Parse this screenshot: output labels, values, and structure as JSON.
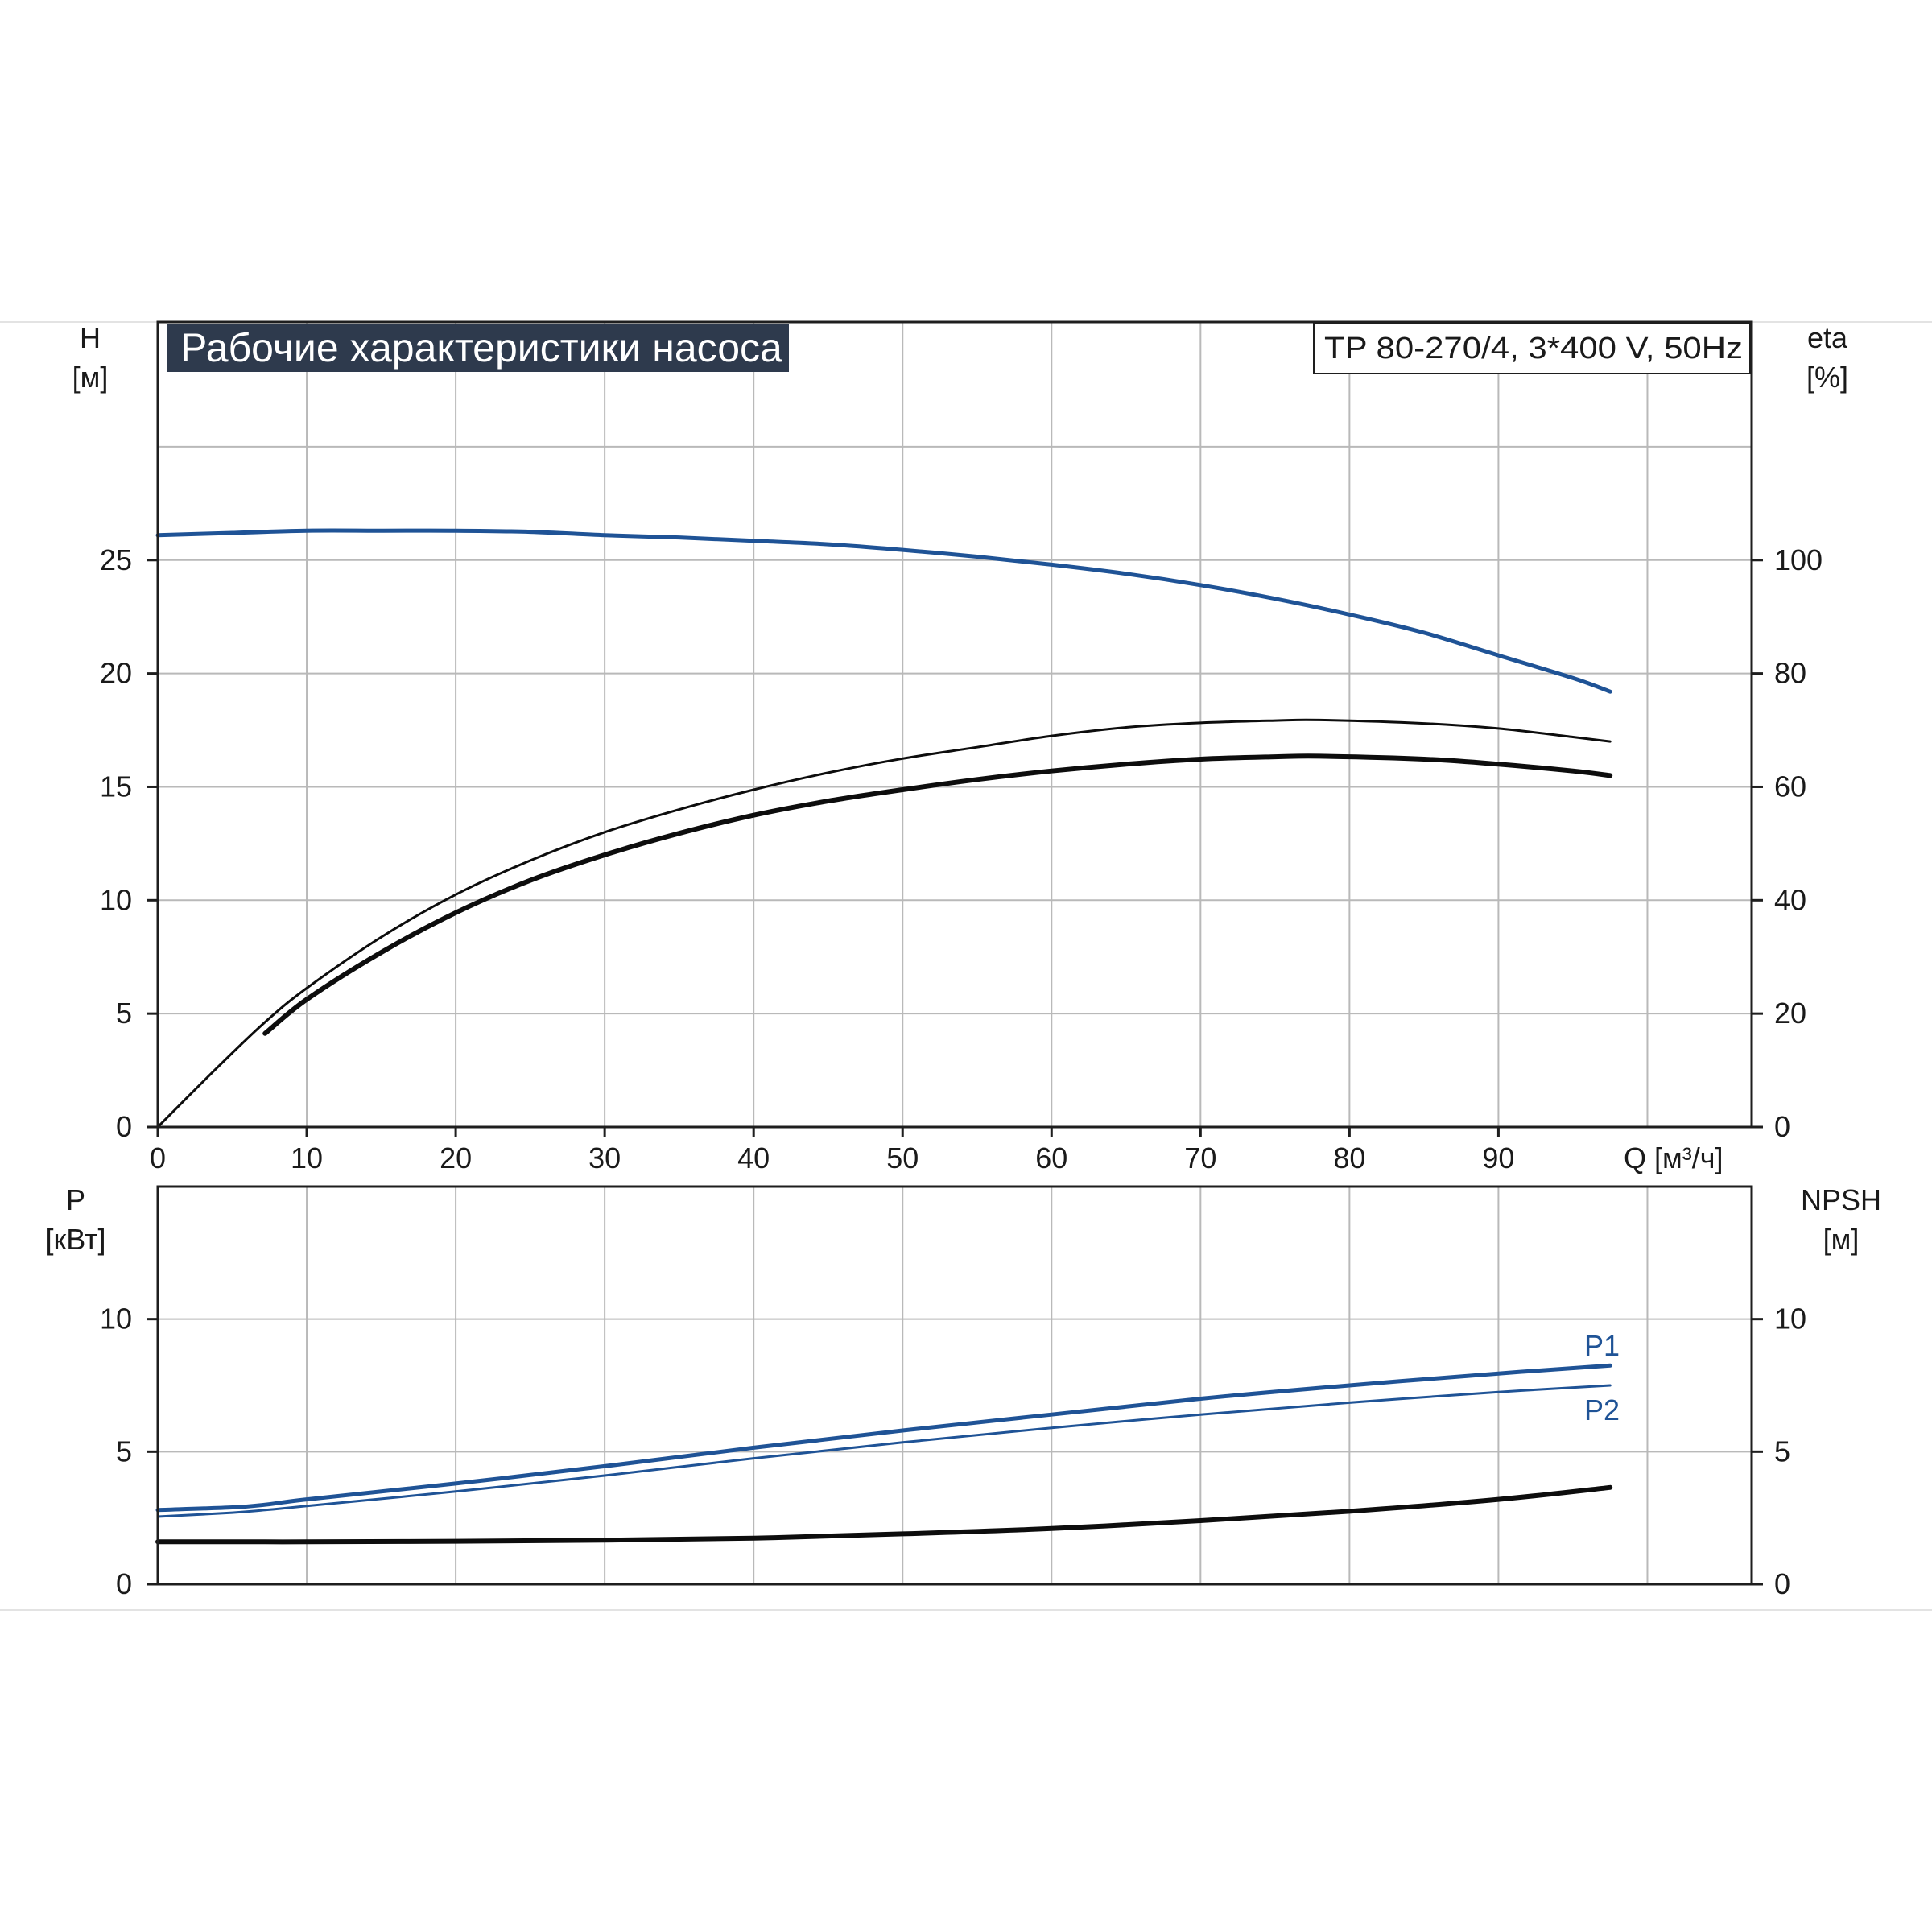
{
  "header": {
    "title": "Рабочие характеристики насоса",
    "model": "TP 80-270/4, 3*400 V, 50Hz"
  },
  "colors": {
    "blue": "#1f5396",
    "black": "#0d0d0d",
    "title_bg": "#2e3a4d"
  },
  "chart_data": [
    {
      "type": "line",
      "title": "Рабочие характеристики насоса",
      "xlabel": "Q [м³/ч]",
      "x_ticks": [
        "0",
        "10",
        "20",
        "30",
        "40",
        "50",
        "60",
        "70",
        "80",
        "90"
      ],
      "xlim": [
        0,
        107
      ],
      "y_left": {
        "label_line1": "H",
        "label_line2": "[м]",
        "ticks": [
          "0",
          "5",
          "10",
          "15",
          "20",
          "25"
        ],
        "ylim": [
          0,
          35.5
        ]
      },
      "y_right": {
        "label_line1": "eta",
        "label_line2": "[%]",
        "ticks": [
          "0",
          "20",
          "40",
          "60",
          "80",
          "100"
        ],
        "ylim": [
          0,
          142
        ]
      },
      "grid": true,
      "series": [
        {
          "key": "head",
          "axis": "left",
          "color": "#1f5396",
          "width": 5,
          "x": [
            0,
            5,
            10,
            15,
            20,
            25,
            30,
            35,
            40,
            45,
            50,
            55,
            60,
            65,
            70,
            75,
            80,
            85,
            90,
            95,
            97.5
          ],
          "y": [
            26.1,
            26.2,
            26.3,
            26.3,
            26.3,
            26.25,
            26.1,
            26.0,
            25.85,
            25.7,
            25.45,
            25.15,
            24.8,
            24.4,
            23.9,
            23.3,
            22.6,
            21.8,
            20.8,
            19.8,
            19.2
          ]
        },
        {
          "key": "eta_thin",
          "axis": "right",
          "color": "#0d0d0d",
          "width": 3,
          "x": [
            0,
            4,
            7.2,
            10,
            15,
            20,
            25,
            30,
            35,
            40,
            45,
            50,
            55,
            60,
            65,
            70,
            75,
            78,
            85,
            90,
            95,
            97.5
          ],
          "y": [
            0,
            10.5,
            18.5,
            24.5,
            33.5,
            41,
            47,
            52,
            56,
            59.5,
            62.5,
            65,
            67,
            69,
            70.5,
            71.3,
            71.7,
            71.8,
            71.2,
            70.3,
            68.8,
            68
          ]
        },
        {
          "key": "eta_thick",
          "axis": "right",
          "color": "#0d0d0d",
          "width": 6,
          "x": [
            7.2,
            10,
            15,
            20,
            25,
            30,
            35,
            40,
            45,
            50,
            55,
            60,
            65,
            70,
            75,
            78,
            85,
            90,
            95,
            97.5
          ],
          "y": [
            16.5,
            22.5,
            30.8,
            37.8,
            43.5,
            48,
            51.8,
            55,
            57.5,
            59.5,
            61.3,
            62.8,
            64,
            64.9,
            65.3,
            65.4,
            64.9,
            64,
            62.8,
            62
          ]
        }
      ]
    },
    {
      "type": "line",
      "xlabel": "",
      "xlim": [
        0,
        107
      ],
      "y_left": {
        "label_line1": "P",
        "label_line2": "[кВт]",
        "ticks": [
          "0",
          "5",
          "10"
        ],
        "ylim": [
          0,
          15
        ]
      },
      "y_right": {
        "label_line1": "NPSH",
        "label_line2": "[м]",
        "ticks": [
          "0",
          "5",
          "10"
        ],
        "ylim": [
          0,
          15
        ]
      },
      "grid": true,
      "series": [
        {
          "key": "p1",
          "name": "P1",
          "axis": "left",
          "color": "#1f5396",
          "width": 5,
          "x": [
            0,
            5,
            7.2,
            10,
            20,
            30,
            40,
            50,
            60,
            70,
            80,
            90,
            97.5
          ],
          "y": [
            2.8,
            2.9,
            3.0,
            3.2,
            3.8,
            4.45,
            5.15,
            5.8,
            6.4,
            7.0,
            7.5,
            7.95,
            8.25
          ]
        },
        {
          "key": "p2",
          "name": "P2",
          "axis": "left",
          "color": "#1f5396",
          "width": 3,
          "x": [
            0,
            5,
            7.2,
            10,
            20,
            30,
            40,
            50,
            60,
            70,
            80,
            90,
            97.5
          ],
          "y": [
            2.55,
            2.7,
            2.8,
            2.95,
            3.5,
            4.1,
            4.75,
            5.35,
            5.9,
            6.4,
            6.85,
            7.25,
            7.5
          ]
        },
        {
          "key": "npsh",
          "axis": "right",
          "color": "#0d0d0d",
          "width": 6,
          "x": [
            0,
            7.2,
            10,
            20,
            30,
            40,
            50,
            60,
            70,
            80,
            90,
            97.5
          ],
          "y": [
            1.6,
            1.6,
            1.6,
            1.62,
            1.66,
            1.74,
            1.9,
            2.1,
            2.4,
            2.75,
            3.2,
            3.65
          ]
        }
      ]
    }
  ]
}
